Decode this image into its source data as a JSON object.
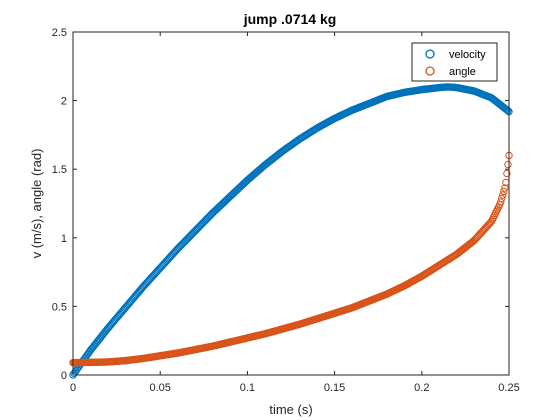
{
  "chart_data": {
    "type": "scatter",
    "title": "jump .0714 kg",
    "xlabel": "time (s)",
    "ylabel": "v (m/s), angle (rad)",
    "xlim": [
      0,
      0.25
    ],
    "ylim": [
      0,
      2.5
    ],
    "xticks": [
      0,
      0.05,
      0.1,
      0.15,
      0.2,
      0.25
    ],
    "xtick_labels": [
      "0",
      "0.05",
      "0.1",
      "0.15",
      "0.2",
      "0.25"
    ],
    "yticks": [
      0,
      0.5,
      1,
      1.5,
      2,
      2.5
    ],
    "ytick_labels": [
      "0",
      "0.5",
      "1",
      "1.5",
      "2",
      "2.5"
    ],
    "grid": false,
    "legend_position": "top-right",
    "marker": "open-circle",
    "series": [
      {
        "name": "velocity",
        "color": "#0072BD",
        "x": [
          0,
          0.005,
          0.01,
          0.015,
          0.02,
          0.03,
          0.04,
          0.05,
          0.06,
          0.07,
          0.08,
          0.09,
          0.1,
          0.11,
          0.12,
          0.13,
          0.14,
          0.15,
          0.16,
          0.17,
          0.18,
          0.19,
          0.2,
          0.21,
          0.215,
          0.22,
          0.23,
          0.24,
          0.245,
          0.25
        ],
        "y": [
          0.0,
          0.09,
          0.18,
          0.26,
          0.34,
          0.49,
          0.64,
          0.78,
          0.92,
          1.05,
          1.18,
          1.3,
          1.42,
          1.53,
          1.63,
          1.72,
          1.8,
          1.87,
          1.93,
          1.98,
          2.03,
          2.06,
          2.08,
          2.095,
          2.1,
          2.095,
          2.07,
          2.02,
          1.97,
          1.92
        ]
      },
      {
        "name": "angle",
        "color": "#D95319",
        "x": [
          0,
          0.01,
          0.02,
          0.03,
          0.04,
          0.05,
          0.06,
          0.07,
          0.08,
          0.09,
          0.1,
          0.11,
          0.12,
          0.13,
          0.14,
          0.15,
          0.16,
          0.17,
          0.18,
          0.19,
          0.2,
          0.21,
          0.22,
          0.23,
          0.24,
          0.245,
          0.248,
          0.25
        ],
        "y": [
          0.09,
          0.092,
          0.095,
          0.105,
          0.12,
          0.14,
          0.16,
          0.185,
          0.21,
          0.24,
          0.27,
          0.3,
          0.335,
          0.37,
          0.41,
          0.45,
          0.49,
          0.54,
          0.59,
          0.65,
          0.72,
          0.8,
          0.88,
          0.98,
          1.12,
          1.25,
          1.38,
          1.6
        ]
      }
    ]
  }
}
